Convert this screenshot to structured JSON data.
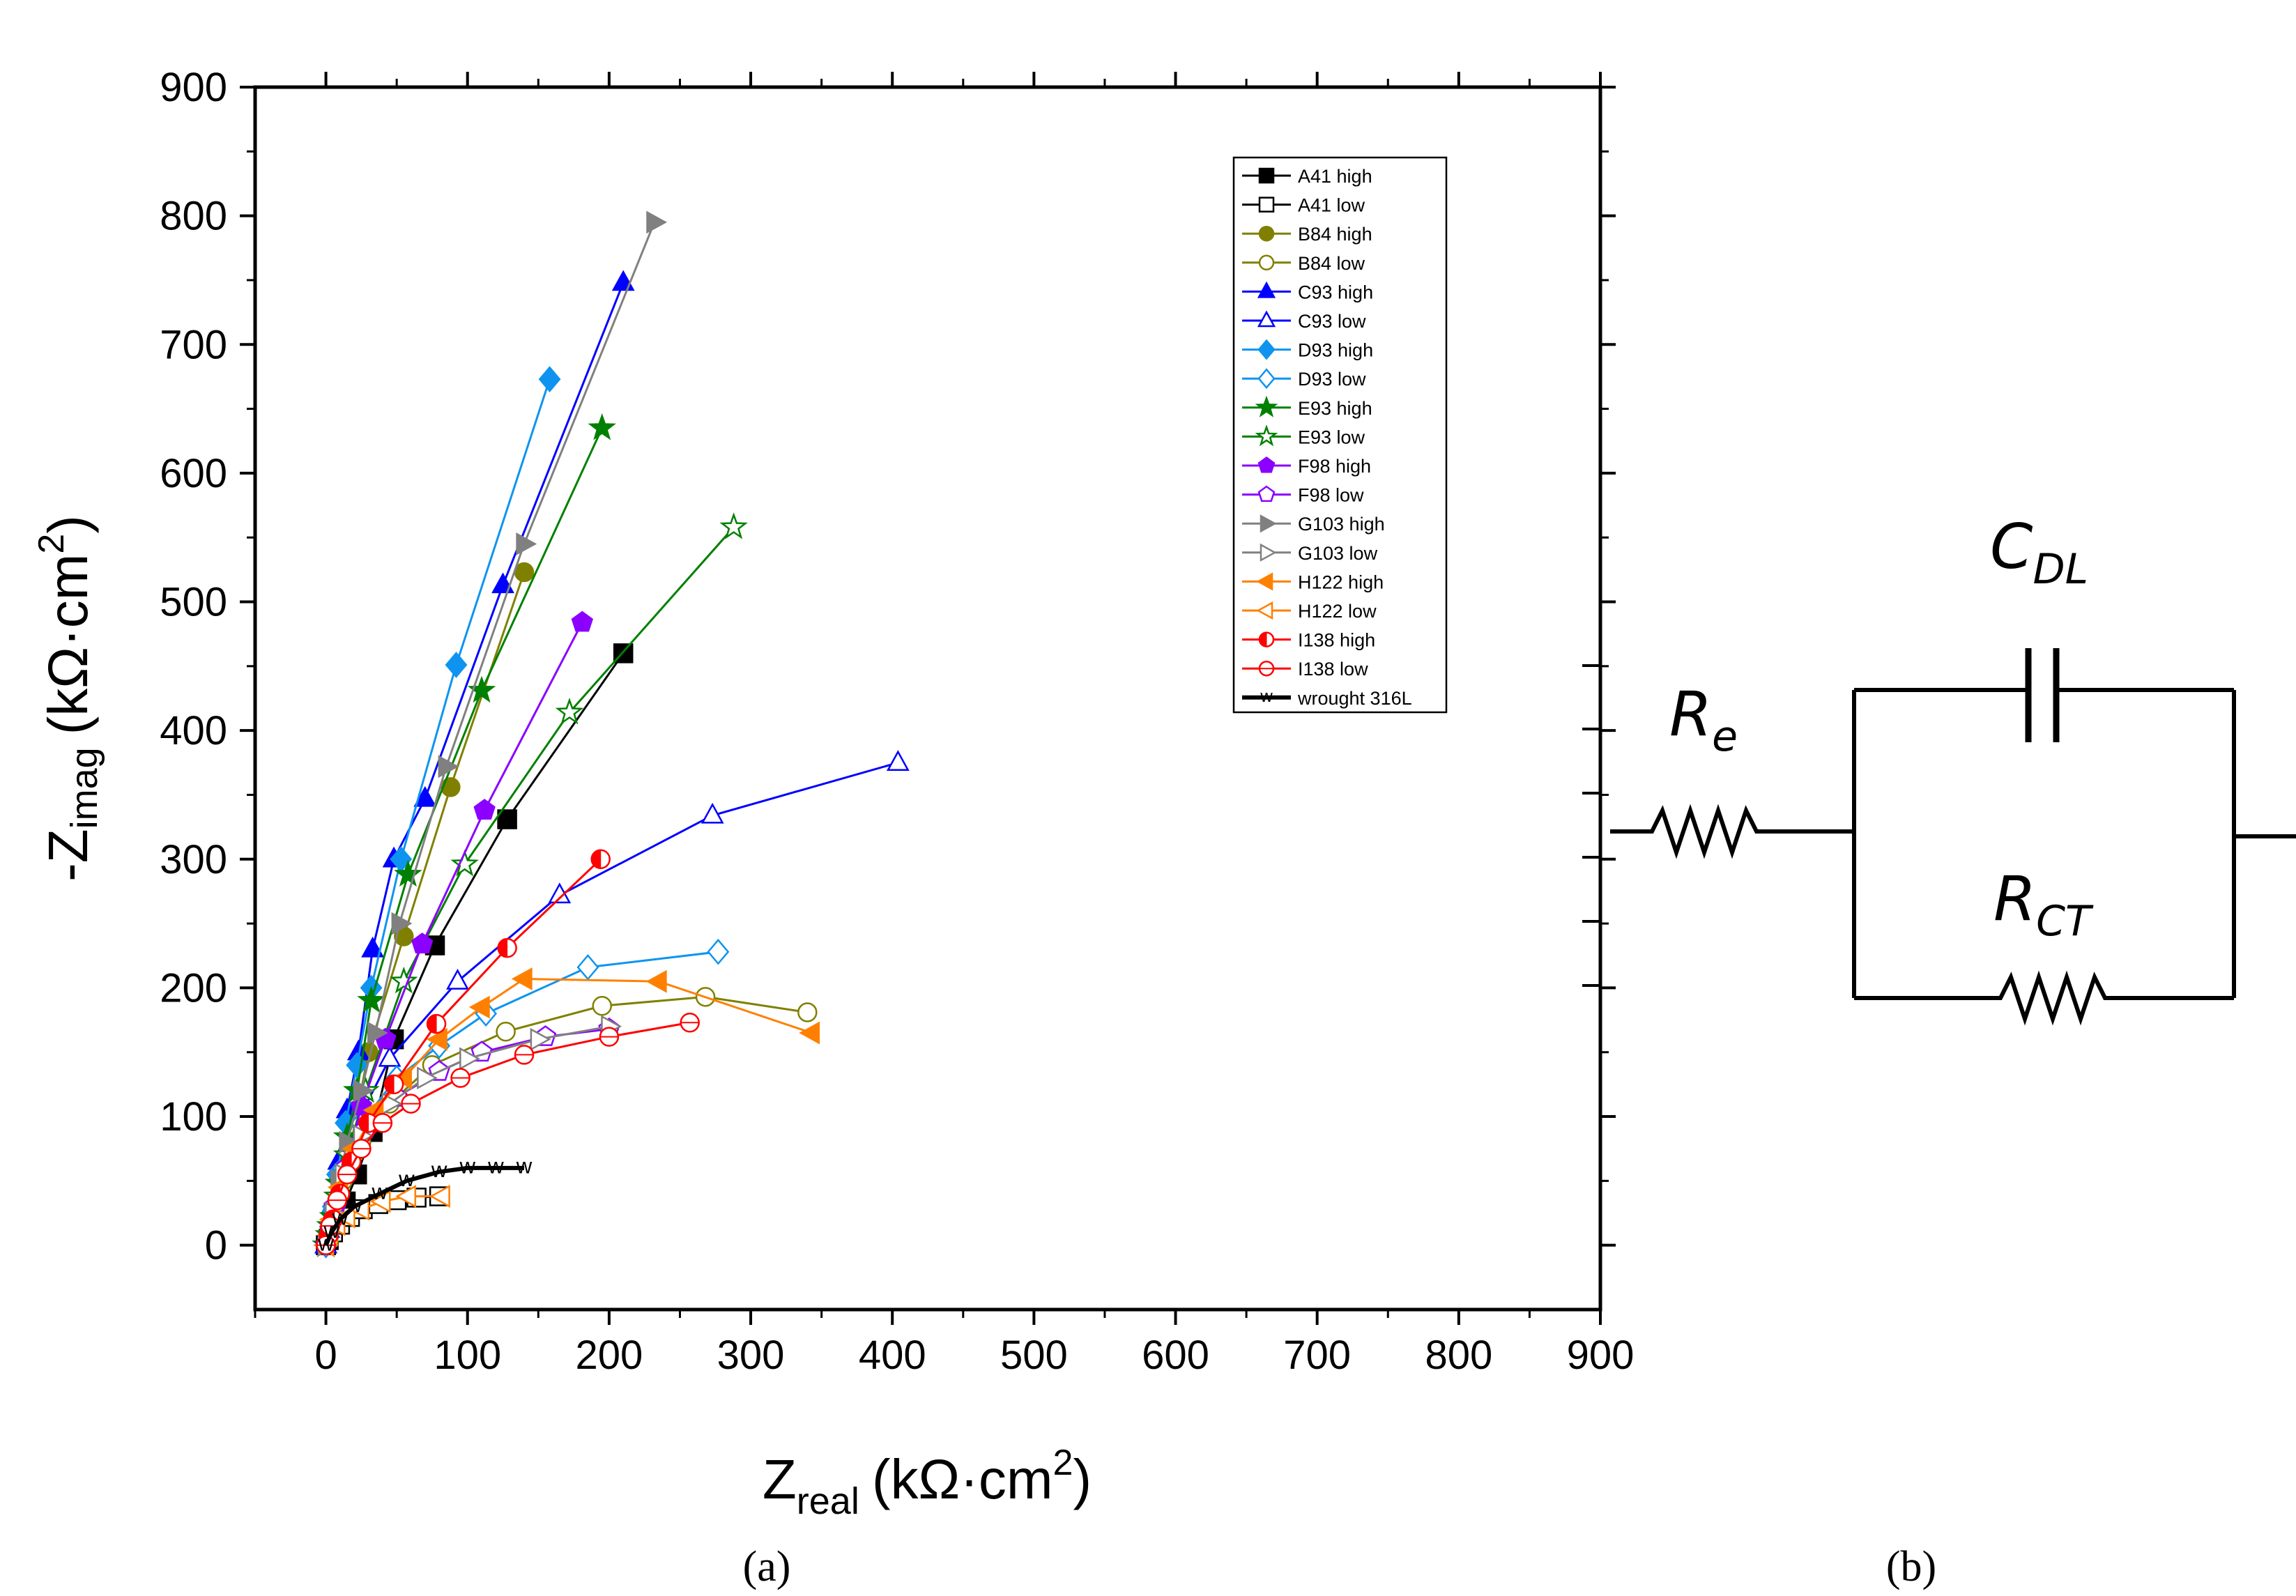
{
  "chart_data": {
    "type": "scatter",
    "title": "",
    "xlabel": "Z",
    "xlabel_sub": "real",
    "xlabel_unit": "(kΩ·cm",
    "xlabel_sup": "2",
    "xlabel_close": ")",
    "ylabel": "-Z",
    "ylabel_sub": "imag",
    "ylabel_unit": "(kΩ·cm",
    "ylabel_sup": "2",
    "ylabel_close": ")",
    "xlim": [
      -50,
      900
    ],
    "ylim": [
      -50,
      900
    ],
    "xticks": [
      "0",
      "100",
      "200",
      "300",
      "400",
      "500",
      "600",
      "700",
      "800",
      "900"
    ],
    "yticks": [
      "0",
      "100",
      "200",
      "300",
      "400",
      "500",
      "600",
      "700",
      "800",
      "900"
    ],
    "legend_position": "top-right",
    "series": [
      {
        "name": "A41 high",
        "color": "#000000",
        "marker": "square",
        "filled": true,
        "x": [
          0,
          2,
          5,
          9,
          14,
          22,
          33,
          48,
          77,
          128,
          210
        ],
        "y": [
          0,
          4,
          10,
          20,
          34,
          55,
          88,
          160,
          233,
          331,
          460
        ]
      },
      {
        "name": "A41 low",
        "color": "#000000",
        "marker": "square",
        "filled": false,
        "x": [
          0,
          2,
          5,
          10,
          17,
          26,
          37,
          50,
          64,
          80
        ],
        "y": [
          0,
          5,
          10,
          16,
          22,
          28,
          32,
          35,
          37,
          38
        ]
      },
      {
        "name": "B84 high",
        "color": "#808000",
        "marker": "circle",
        "filled": true,
        "x": [
          0,
          2,
          5,
          10,
          18,
          30,
          55,
          88,
          140
        ],
        "y": [
          0,
          6,
          18,
          40,
          80,
          150,
          240,
          356,
          523
        ]
      },
      {
        "name": "B84 low",
        "color": "#808000",
        "marker": "circle",
        "filled": false,
        "x": [
          0,
          5,
          12,
          25,
          45,
          75,
          127,
          195,
          268,
          340
        ],
        "y": [
          0,
          25,
          50,
          80,
          110,
          140,
          166,
          186,
          193,
          181
        ]
      },
      {
        "name": "C93 high",
        "color": "#0000ff",
        "marker": "triangle-up",
        "filled": true,
        "x": [
          0,
          2,
          5,
          9,
          15,
          23,
          33,
          48,
          70,
          125,
          210
        ],
        "y": [
          0,
          12,
          32,
          65,
          105,
          150,
          230,
          300,
          347,
          513,
          748
        ]
      },
      {
        "name": "C93 low",
        "color": "#0000ff",
        "marker": "triangle-up",
        "filled": false,
        "x": [
          0,
          5,
          12,
          24,
          45,
          93,
          165,
          273,
          404
        ],
        "y": [
          0,
          30,
          60,
          100,
          145,
          205,
          272,
          334,
          375
        ]
      },
      {
        "name": "D93 high",
        "color": "#0e94f0",
        "marker": "diamond",
        "filled": true,
        "x": [
          0,
          2,
          4,
          8,
          14,
          22,
          32,
          53,
          92,
          158
        ],
        "y": [
          0,
          10,
          25,
          55,
          95,
          140,
          200,
          300,
          451,
          673
        ]
      },
      {
        "name": "D93 low",
        "color": "#0e94f0",
        "marker": "diamond",
        "filled": false,
        "x": [
          0,
          5,
          12,
          25,
          50,
          80,
          113,
          185,
          277
        ],
        "y": [
          0,
          30,
          60,
          95,
          130,
          155,
          180,
          216,
          228
        ]
      },
      {
        "name": "E93 high",
        "color": "#008000",
        "marker": "star",
        "filled": true,
        "x": [
          0,
          2,
          5,
          9,
          15,
          22,
          32,
          58,
          110,
          195
        ],
        "y": [
          0,
          8,
          22,
          48,
          84,
          120,
          190,
          288,
          431,
          635
        ]
      },
      {
        "name": "E93 low",
        "color": "#008000",
        "marker": "star",
        "filled": false,
        "x": [
          0,
          3,
          8,
          15,
          28,
          55,
          98,
          172,
          288
        ],
        "y": [
          0,
          15,
          38,
          70,
          120,
          205,
          296,
          414,
          558
        ]
      },
      {
        "name": "F98 high",
        "color": "#8b00ff",
        "marker": "pentagon",
        "filled": true,
        "x": [
          0,
          3,
          7,
          14,
          25,
          42,
          68,
          112,
          181
        ],
        "y": [
          0,
          12,
          30,
          58,
          108,
          160,
          234,
          338,
          484
        ]
      },
      {
        "name": "F98 low",
        "color": "#8b00ff",
        "marker": "pentagon",
        "filled": false,
        "x": [
          0,
          6,
          14,
          28,
          50,
          80,
          110,
          155,
          200
        ],
        "y": [
          0,
          30,
          60,
          90,
          115,
          135,
          150,
          162,
          168
        ]
      },
      {
        "name": "G103 high",
        "color": "#808080",
        "marker": "triangle-right",
        "filled": true,
        "x": [
          0,
          2,
          5,
          9,
          15,
          25,
          35,
          52,
          85,
          140,
          232
        ],
        "y": [
          0,
          10,
          25,
          50,
          80,
          120,
          165,
          250,
          372,
          545,
          795
        ]
      },
      {
        "name": "G103 low",
        "color": "#808080",
        "marker": "triangle-right",
        "filled": false,
        "x": [
          0,
          5,
          12,
          25,
          45,
          70,
          100,
          150,
          200
        ],
        "y": [
          0,
          25,
          55,
          85,
          110,
          130,
          145,
          160,
          170
        ]
      },
      {
        "name": "H122 high",
        "color": "#ff8000",
        "marker": "triangle-left",
        "filled": true,
        "x": [
          0,
          4,
          10,
          20,
          35,
          55,
          80,
          110,
          140,
          235,
          343
        ],
        "y": [
          0,
          20,
          45,
          75,
          105,
          130,
          160,
          185,
          207,
          205,
          165
        ]
      },
      {
        "name": "H122 low",
        "color": "#ff8000",
        "marker": "triangle-left",
        "filled": false,
        "x": [
          0,
          3,
          8,
          15,
          25,
          40,
          58,
          82
        ],
        "y": [
          0,
          8,
          16,
          22,
          28,
          34,
          38,
          38
        ]
      },
      {
        "name": "I138 high",
        "color": "#ff0000",
        "marker": "half-circle",
        "filled": true,
        "x": [
          0,
          2,
          5,
          10,
          18,
          30,
          48,
          78,
          128,
          194
        ],
        "y": [
          0,
          8,
          20,
          40,
          65,
          95,
          125,
          172,
          231,
          300
        ]
      },
      {
        "name": "I138 low",
        "color": "#ff0000",
        "marker": "circle-cross",
        "filled": false,
        "x": [
          0,
          3,
          8,
          15,
          25,
          40,
          60,
          95,
          140,
          200,
          257
        ],
        "y": [
          0,
          15,
          35,
          55,
          75,
          95,
          110,
          130,
          148,
          162,
          173
        ]
      },
      {
        "name": "wrought 316L",
        "color": "#000000",
        "marker": "w",
        "filled": true,
        "x": [
          0,
          4,
          10,
          20,
          38,
          57,
          80,
          100,
          120,
          140
        ],
        "y": [
          0,
          10,
          20,
          30,
          40,
          50,
          57,
          60,
          60,
          60
        ]
      }
    ]
  },
  "panels": {
    "a_label": "(a)",
    "b_label": "(b)"
  },
  "circuit": {
    "re_main": "R",
    "re_sub": "e",
    "cdl_main": "C",
    "cdl_sub": "DL",
    "rct_main": "R",
    "rct_sub": "CT"
  }
}
